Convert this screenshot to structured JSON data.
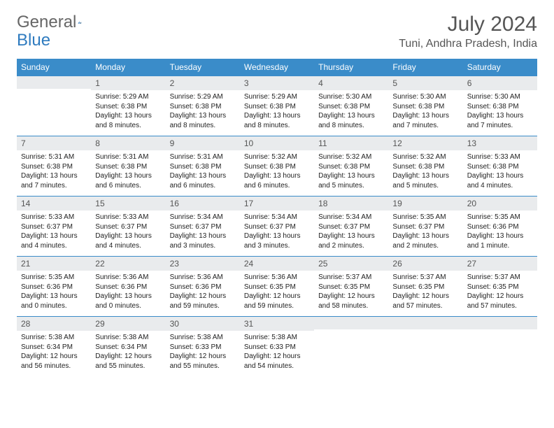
{
  "logo": {
    "text1": "General",
    "text2": "Blue"
  },
  "title": "July 2024",
  "location": "Tuni, Andhra Pradesh, India",
  "colors": {
    "header_bg": "#3a8cc9",
    "header_text": "#ffffff",
    "daynum_bg": "#e9ebed",
    "rule": "#3a8cc9",
    "text": "#222222",
    "title_text": "#555555"
  },
  "weekdays": [
    "Sunday",
    "Monday",
    "Tuesday",
    "Wednesday",
    "Thursday",
    "Friday",
    "Saturday"
  ],
  "grid": [
    [
      {
        "n": "",
        "lines": [
          "",
          "",
          ""
        ]
      },
      {
        "n": "1",
        "lines": [
          "Sunrise: 5:29 AM",
          "Sunset: 6:38 PM",
          "Daylight: 13 hours and 8 minutes."
        ]
      },
      {
        "n": "2",
        "lines": [
          "Sunrise: 5:29 AM",
          "Sunset: 6:38 PM",
          "Daylight: 13 hours and 8 minutes."
        ]
      },
      {
        "n": "3",
        "lines": [
          "Sunrise: 5:29 AM",
          "Sunset: 6:38 PM",
          "Daylight: 13 hours and 8 minutes."
        ]
      },
      {
        "n": "4",
        "lines": [
          "Sunrise: 5:30 AM",
          "Sunset: 6:38 PM",
          "Daylight: 13 hours and 8 minutes."
        ]
      },
      {
        "n": "5",
        "lines": [
          "Sunrise: 5:30 AM",
          "Sunset: 6:38 PM",
          "Daylight: 13 hours and 7 minutes."
        ]
      },
      {
        "n": "6",
        "lines": [
          "Sunrise: 5:30 AM",
          "Sunset: 6:38 PM",
          "Daylight: 13 hours and 7 minutes."
        ]
      }
    ],
    [
      {
        "n": "7",
        "lines": [
          "Sunrise: 5:31 AM",
          "Sunset: 6:38 PM",
          "Daylight: 13 hours and 7 minutes."
        ]
      },
      {
        "n": "8",
        "lines": [
          "Sunrise: 5:31 AM",
          "Sunset: 6:38 PM",
          "Daylight: 13 hours and 6 minutes."
        ]
      },
      {
        "n": "9",
        "lines": [
          "Sunrise: 5:31 AM",
          "Sunset: 6:38 PM",
          "Daylight: 13 hours and 6 minutes."
        ]
      },
      {
        "n": "10",
        "lines": [
          "Sunrise: 5:32 AM",
          "Sunset: 6:38 PM",
          "Daylight: 13 hours and 6 minutes."
        ]
      },
      {
        "n": "11",
        "lines": [
          "Sunrise: 5:32 AM",
          "Sunset: 6:38 PM",
          "Daylight: 13 hours and 5 minutes."
        ]
      },
      {
        "n": "12",
        "lines": [
          "Sunrise: 5:32 AM",
          "Sunset: 6:38 PM",
          "Daylight: 13 hours and 5 minutes."
        ]
      },
      {
        "n": "13",
        "lines": [
          "Sunrise: 5:33 AM",
          "Sunset: 6:38 PM",
          "Daylight: 13 hours and 4 minutes."
        ]
      }
    ],
    [
      {
        "n": "14",
        "lines": [
          "Sunrise: 5:33 AM",
          "Sunset: 6:37 PM",
          "Daylight: 13 hours and 4 minutes."
        ]
      },
      {
        "n": "15",
        "lines": [
          "Sunrise: 5:33 AM",
          "Sunset: 6:37 PM",
          "Daylight: 13 hours and 4 minutes."
        ]
      },
      {
        "n": "16",
        "lines": [
          "Sunrise: 5:34 AM",
          "Sunset: 6:37 PM",
          "Daylight: 13 hours and 3 minutes."
        ]
      },
      {
        "n": "17",
        "lines": [
          "Sunrise: 5:34 AM",
          "Sunset: 6:37 PM",
          "Daylight: 13 hours and 3 minutes."
        ]
      },
      {
        "n": "18",
        "lines": [
          "Sunrise: 5:34 AM",
          "Sunset: 6:37 PM",
          "Daylight: 13 hours and 2 minutes."
        ]
      },
      {
        "n": "19",
        "lines": [
          "Sunrise: 5:35 AM",
          "Sunset: 6:37 PM",
          "Daylight: 13 hours and 2 minutes."
        ]
      },
      {
        "n": "20",
        "lines": [
          "Sunrise: 5:35 AM",
          "Sunset: 6:36 PM",
          "Daylight: 13 hours and 1 minute."
        ]
      }
    ],
    [
      {
        "n": "21",
        "lines": [
          "Sunrise: 5:35 AM",
          "Sunset: 6:36 PM",
          "Daylight: 13 hours and 0 minutes."
        ]
      },
      {
        "n": "22",
        "lines": [
          "Sunrise: 5:36 AM",
          "Sunset: 6:36 PM",
          "Daylight: 13 hours and 0 minutes."
        ]
      },
      {
        "n": "23",
        "lines": [
          "Sunrise: 5:36 AM",
          "Sunset: 6:36 PM",
          "Daylight: 12 hours and 59 minutes."
        ]
      },
      {
        "n": "24",
        "lines": [
          "Sunrise: 5:36 AM",
          "Sunset: 6:35 PM",
          "Daylight: 12 hours and 59 minutes."
        ]
      },
      {
        "n": "25",
        "lines": [
          "Sunrise: 5:37 AM",
          "Sunset: 6:35 PM",
          "Daylight: 12 hours and 58 minutes."
        ]
      },
      {
        "n": "26",
        "lines": [
          "Sunrise: 5:37 AM",
          "Sunset: 6:35 PM",
          "Daylight: 12 hours and 57 minutes."
        ]
      },
      {
        "n": "27",
        "lines": [
          "Sunrise: 5:37 AM",
          "Sunset: 6:35 PM",
          "Daylight: 12 hours and 57 minutes."
        ]
      }
    ],
    [
      {
        "n": "28",
        "lines": [
          "Sunrise: 5:38 AM",
          "Sunset: 6:34 PM",
          "Daylight: 12 hours and 56 minutes."
        ]
      },
      {
        "n": "29",
        "lines": [
          "Sunrise: 5:38 AM",
          "Sunset: 6:34 PM",
          "Daylight: 12 hours and 55 minutes."
        ]
      },
      {
        "n": "30",
        "lines": [
          "Sunrise: 5:38 AM",
          "Sunset: 6:33 PM",
          "Daylight: 12 hours and 55 minutes."
        ]
      },
      {
        "n": "31",
        "lines": [
          "Sunrise: 5:38 AM",
          "Sunset: 6:33 PM",
          "Daylight: 12 hours and 54 minutes."
        ]
      },
      {
        "n": "",
        "lines": [
          "",
          "",
          ""
        ]
      },
      {
        "n": "",
        "lines": [
          "",
          "",
          ""
        ]
      },
      {
        "n": "",
        "lines": [
          "",
          "",
          ""
        ]
      }
    ]
  ]
}
